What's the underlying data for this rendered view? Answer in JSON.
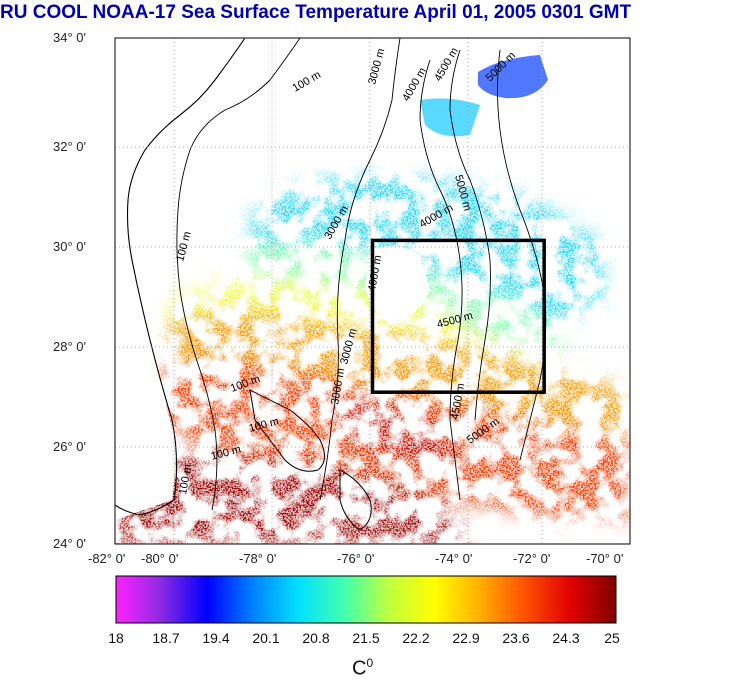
{
  "title": "RU COOL  NOAA-17 Sea Surface Temperature April 01, 2005 0301 GMT",
  "latitude_labels": [
    "34° 0'",
    "32° 0'",
    "30° 0'",
    "28° 0'",
    "26° 0'",
    "24° 0'"
  ],
  "longitude_labels": [
    "-82° 0'",
    "-80° 0'",
    "-78° 0'",
    "-76° 0'",
    "-74° 0'",
    "-72° 0'",
    "-70° 0'"
  ],
  "contours": {
    "labels": [
      "100 m",
      "100 m",
      "100 m",
      "100 m",
      "100 m",
      "100 m",
      "3000 m",
      "3000 m",
      "3000 m",
      "3000 m",
      "4000 m",
      "4000 m",
      "4000 m",
      "4500 m",
      "4500 m",
      "4500 m",
      "5000 m",
      "5000 m",
      "5000 m"
    ]
  },
  "study_box": {
    "lon_min": -76,
    "lon_max": -72,
    "lat_min": 27,
    "lat_max": 30
  },
  "colorbar": {
    "ticks": [
      "18",
      "18.7",
      "19.4",
      "20.1",
      "20.8",
      "21.5",
      "22.2",
      "22.9",
      "23.6",
      "24.3",
      "25"
    ],
    "min": 18,
    "max": 25,
    "unit": "C",
    "unit_superscript": "0",
    "colors": [
      "#ff22ff",
      "#8a2be2",
      "#0000ff",
      "#0080ff",
      "#00e0ff",
      "#40ffb0",
      "#c0ff40",
      "#ffff00",
      "#ffb000",
      "#ff5000",
      "#e00000",
      "#800000"
    ]
  },
  "colors": {
    "title": "#0000b4",
    "land": "#ffffff",
    "cloud": "#ffffff",
    "coastline": "#000000",
    "contour": "#000000",
    "grid": "#999999",
    "box": "#000000"
  }
}
